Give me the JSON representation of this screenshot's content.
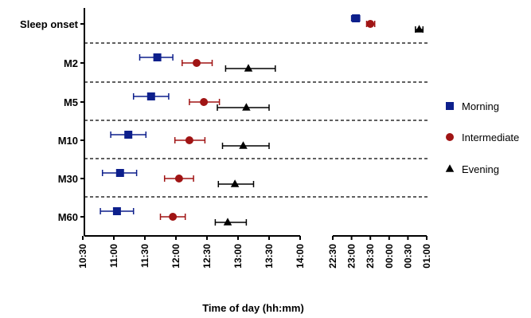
{
  "chart_data": {
    "type": "scatter",
    "xlabel": "Time of day (hh:mm)",
    "ylabel": "",
    "categories": [
      "Sleep onset",
      "M2",
      "M5",
      "M10",
      "M30",
      "M60"
    ],
    "x_segments": [
      {
        "ticks": [
          "10:30",
          "11:00",
          "11:30",
          "12:00",
          "12:30",
          "13:00",
          "13:30",
          "14:00"
        ],
        "range": [
          "10:30",
          "14:00"
        ]
      },
      {
        "ticks": [
          "22:30",
          "23:00",
          "23:30",
          "00:00",
          "00:30",
          "01:00"
        ],
        "range": [
          "22:30",
          "01:00"
        ]
      }
    ],
    "series": [
      {
        "name": "Morning",
        "color": "#0d1f8c",
        "marker": "square",
        "points": [
          {
            "category": "Sleep onset",
            "x": "23:07",
            "err_low": "23:00",
            "err_high": "23:13"
          },
          {
            "category": "M2",
            "x": "11:42",
            "err_low": "11:25",
            "err_high": "11:57"
          },
          {
            "category": "M5",
            "x": "11:36",
            "err_low": "11:19",
            "err_high": "11:53"
          },
          {
            "category": "M10",
            "x": "11:14",
            "err_low": "10:57",
            "err_high": "11:31"
          },
          {
            "category": "M30",
            "x": "11:06",
            "err_low": "10:49",
            "err_high": "11:22"
          },
          {
            "category": "M60",
            "x": "11:03",
            "err_low": "10:47",
            "err_high": "11:19"
          }
        ]
      },
      {
        "name": "Intermediate",
        "color": "#a01414",
        "marker": "circle",
        "points": [
          {
            "category": "Sleep onset",
            "x": "23:30",
            "err_low": "23:24",
            "err_high": "23:37"
          },
          {
            "category": "M2",
            "x": "12:20",
            "err_low": "12:06",
            "err_high": "12:35"
          },
          {
            "category": "M5",
            "x": "12:27",
            "err_low": "12:13",
            "err_high": "12:42"
          },
          {
            "category": "M10",
            "x": "12:13",
            "err_low": "11:59",
            "err_high": "12:28"
          },
          {
            "category": "M30",
            "x": "12:03",
            "err_low": "11:49",
            "err_high": "12:17"
          },
          {
            "category": "M60",
            "x": "11:57",
            "err_low": "11:45",
            "err_high": "12:09"
          }
        ]
      },
      {
        "name": "Evening",
        "color": "#000000",
        "marker": "triangle",
        "points": [
          {
            "category": "Sleep onset",
            "x": "00:48",
            "err_low": "00:42",
            "err_high": "00:54"
          },
          {
            "category": "M2",
            "x": "13:10",
            "err_low": "12:48",
            "err_high": "13:36"
          },
          {
            "category": "M5",
            "x": "13:08",
            "err_low": "12:40",
            "err_high": "13:30"
          },
          {
            "category": "M10",
            "x": "13:05",
            "err_low": "12:45",
            "err_high": "13:30"
          },
          {
            "category": "M30",
            "x": "12:57",
            "err_low": "12:41",
            "err_high": "13:15"
          },
          {
            "category": "M60",
            "x": "12:50",
            "err_low": "12:38",
            "err_high": "13:08"
          }
        ]
      }
    ],
    "legend": {
      "placement": "right",
      "entries": [
        "Morning",
        "Intermediate",
        "Evening"
      ]
    },
    "grid": false,
    "separators": "dashed"
  }
}
